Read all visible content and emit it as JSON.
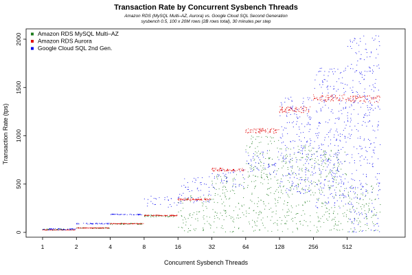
{
  "chart_data": {
    "type": "scatter",
    "title": "Transaction Rate by Concurrent Sysbench Threads",
    "subtitle": [
      "Amazon RDS (MySQL Multi–AZ, Aurora) vs. Google Cloud SQL Second Generation",
      "sysbench 0.5, 100 x 20M rows (2B rows total), 30 minutes per step"
    ],
    "xlabel": "Concurrent Sysbench Threads",
    "ylabel": "Transaction Rate (tps)",
    "x_categories": [
      "1",
      "2",
      "4",
      "8",
      "16",
      "32",
      "64",
      "128",
      "256",
      "512"
    ],
    "y_ticks": [
      0,
      500,
      1000,
      1500,
      2000
    ],
    "ylim": [
      0,
      2050
    ],
    "grid": false,
    "legend_position": "top-left",
    "series": [
      {
        "name": "Amazon RDS MySQL Multi–AZ",
        "color": "#1e7b1e",
        "steps": [
          {
            "threads": "1",
            "low": 20,
            "high": 35
          },
          {
            "threads": "2",
            "low": 40,
            "high": 50
          },
          {
            "threads": "4",
            "low": 80,
            "high": 95
          },
          {
            "threads": "8",
            "low": 160,
            "high": 180
          },
          {
            "threads": "16",
            "low": 0,
            "high": 380
          },
          {
            "threads": "32",
            "low": 0,
            "high": 600
          },
          {
            "threads": "64",
            "low": 0,
            "high": 1000
          },
          {
            "threads": "128",
            "low": 0,
            "high": 900
          },
          {
            "threads": "256",
            "low": 0,
            "high": 850
          },
          {
            "threads": "512",
            "low": 0,
            "high": 500
          }
        ]
      },
      {
        "name": "Amazon RDS Aurora",
        "color": "#e00000",
        "steps": [
          {
            "threads": "1",
            "level": 25
          },
          {
            "threads": "2",
            "level": 45
          },
          {
            "threads": "4",
            "level": 90
          },
          {
            "threads": "8",
            "level": 175
          },
          {
            "threads": "16",
            "level": 340
          },
          {
            "threads": "32",
            "level": 650
          },
          {
            "threads": "64",
            "level": 1050
          },
          {
            "threads": "128",
            "level": 1270
          },
          {
            "threads": "256",
            "level": 1390
          },
          {
            "threads": "512",
            "level": 1380
          }
        ]
      },
      {
        "name": "Google Cloud SQL 2nd Gen.",
        "color": "#0000ee",
        "steps": [
          {
            "threads": "1",
            "low": 25,
            "high": 40
          },
          {
            "threads": "2",
            "low": 85,
            "high": 95
          },
          {
            "threads": "4",
            "low": 180,
            "high": 190
          },
          {
            "threads": "8",
            "low": 250,
            "high": 380
          },
          {
            "threads": "16",
            "low": 300,
            "high": 580
          },
          {
            "threads": "32",
            "low": 450,
            "high": 650
          },
          {
            "threads": "64",
            "low": 600,
            "high": 850
          },
          {
            "threads": "128",
            "low": 400,
            "high": 1400
          },
          {
            "threads": "256",
            "low": 250,
            "high": 1700
          },
          {
            "threads": "512",
            "low": 0,
            "high": 2050
          }
        ]
      }
    ]
  }
}
